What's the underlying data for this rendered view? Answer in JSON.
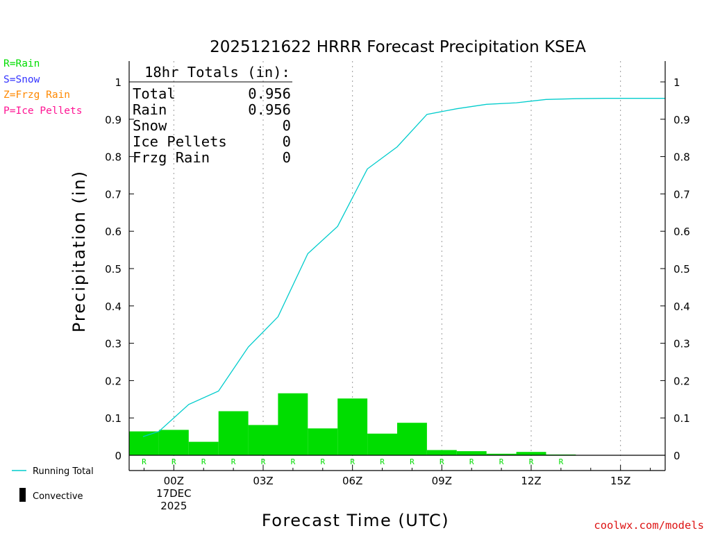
{
  "colors": {
    "rain": "#00dd00",
    "snow": "#3333ff",
    "frzg": "#ff8800",
    "ice": "#ff1493",
    "running": "#00cccc",
    "url": "#dd1111",
    "axis": "#000000",
    "grid": "#999999"
  },
  "legend": {
    "rain": "R=Rain",
    "snow": "S=Snow",
    "frzg": "Z=Frzg Rain",
    "ice": "P=Ice Pellets",
    "running_total": "Running Total",
    "convective": "Convective"
  },
  "totals_box": {
    "header": "18hr Totals (in):",
    "rows": [
      {
        "label": "Total",
        "value": "0.956"
      },
      {
        "label": "Rain",
        "value": "0.956"
      },
      {
        "label": "Snow",
        "value": "0"
      },
      {
        "label": "Ice Pellets",
        "value": "0"
      },
      {
        "label": "Frzg Rain",
        "value": "0"
      }
    ]
  },
  "footer_url": "coolwx.com/models",
  "chart_data": {
    "type": "bar",
    "title": "2025121622 HRRR Forecast Precipitation KSEA",
    "xlabel": "Forecast Time (UTC)",
    "ylabel": "Precipitation (in)",
    "ylim": [
      0,
      1.05
    ],
    "xlim": [
      -1.5,
      16.5
    ],
    "yticks": [
      0,
      0.1,
      0.2,
      0.3,
      0.4,
      0.5,
      0.6,
      0.7,
      0.8,
      0.9,
      1
    ],
    "ytick_labels": [
      "0",
      "0.1",
      "0.2",
      "0.3",
      "0.4",
      "0.5",
      "0.6",
      "0.7",
      "0.8",
      "0.9",
      "1"
    ],
    "xticks": [
      {
        "h": 0,
        "lines": [
          "00Z",
          "17DEC",
          "2025"
        ]
      },
      {
        "h": 3,
        "lines": [
          "03Z"
        ]
      },
      {
        "h": 6,
        "lines": [
          "06Z"
        ]
      },
      {
        "h": 9,
        "lines": [
          "09Z"
        ]
      },
      {
        "h": 12,
        "lines": [
          "12Z"
        ]
      },
      {
        "h": 15,
        "lines": [
          "15Z"
        ]
      }
    ],
    "hours": [
      -1,
      0,
      1,
      2,
      3,
      4,
      5,
      6,
      7,
      8,
      9,
      10,
      11,
      12,
      13,
      14,
      15,
      16
    ],
    "series": [
      {
        "name": "Rain",
        "values": [
          0.064,
          0.068,
          0.036,
          0.118,
          0.081,
          0.166,
          0.072,
          0.152,
          0.058,
          0.087,
          0.014,
          0.011,
          0.004,
          0.009,
          0.002,
          0.001,
          0.001,
          0.001
        ]
      },
      {
        "name": "Running Total",
        "values": [
          0.064,
          0.136,
          0.172,
          0.29,
          0.371,
          0.54,
          0.613,
          0.767,
          0.826,
          0.913,
          0.928,
          0.94,
          0.944,
          0.953,
          0.955,
          0.956,
          0.956,
          0.956
        ]
      }
    ],
    "precip_type_labels": [
      "R",
      "R",
      "R",
      "R",
      "R",
      "R",
      "R",
      "R",
      "R",
      "R",
      "R",
      "R",
      "R",
      "R",
      "R"
    ]
  }
}
